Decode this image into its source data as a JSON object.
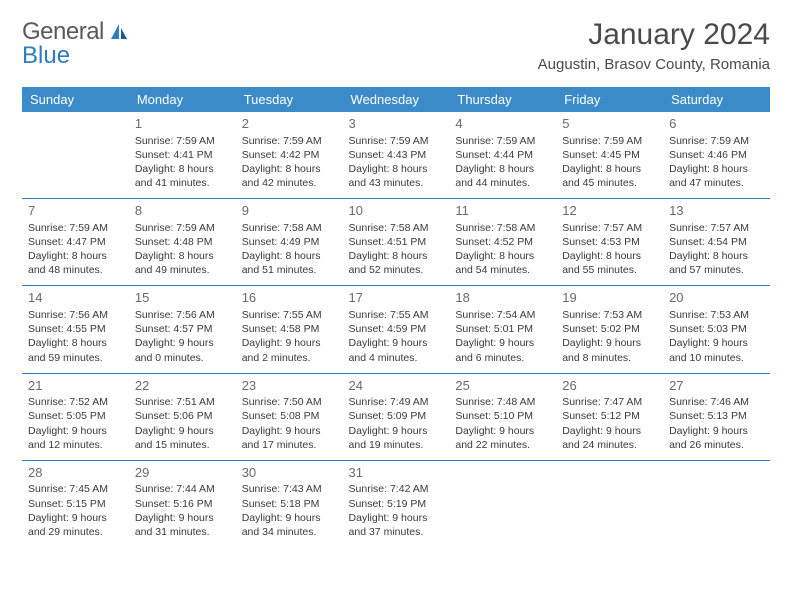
{
  "logo": {
    "part1": "General",
    "part2": "Blue"
  },
  "title": "January 2024",
  "location": "Augustin, Brasov County, Romania",
  "colors": {
    "header_bg": "#3b8bc9",
    "header_fg": "#ffffff",
    "accent": "#2f7bbf",
    "text": "#3a3a3a",
    "title_color": "#4a4a4a"
  },
  "day_names": [
    "Sunday",
    "Monday",
    "Tuesday",
    "Wednesday",
    "Thursday",
    "Friday",
    "Saturday"
  ],
  "weeks": [
    [
      null,
      {
        "n": "1",
        "sr": "Sunrise: 7:59 AM",
        "ss": "Sunset: 4:41 PM",
        "d1": "Daylight: 8 hours",
        "d2": "and 41 minutes."
      },
      {
        "n": "2",
        "sr": "Sunrise: 7:59 AM",
        "ss": "Sunset: 4:42 PM",
        "d1": "Daylight: 8 hours",
        "d2": "and 42 minutes."
      },
      {
        "n": "3",
        "sr": "Sunrise: 7:59 AM",
        "ss": "Sunset: 4:43 PM",
        "d1": "Daylight: 8 hours",
        "d2": "and 43 minutes."
      },
      {
        "n": "4",
        "sr": "Sunrise: 7:59 AM",
        "ss": "Sunset: 4:44 PM",
        "d1": "Daylight: 8 hours",
        "d2": "and 44 minutes."
      },
      {
        "n": "5",
        "sr": "Sunrise: 7:59 AM",
        "ss": "Sunset: 4:45 PM",
        "d1": "Daylight: 8 hours",
        "d2": "and 45 minutes."
      },
      {
        "n": "6",
        "sr": "Sunrise: 7:59 AM",
        "ss": "Sunset: 4:46 PM",
        "d1": "Daylight: 8 hours",
        "d2": "and 47 minutes."
      }
    ],
    [
      {
        "n": "7",
        "sr": "Sunrise: 7:59 AM",
        "ss": "Sunset: 4:47 PM",
        "d1": "Daylight: 8 hours",
        "d2": "and 48 minutes."
      },
      {
        "n": "8",
        "sr": "Sunrise: 7:59 AM",
        "ss": "Sunset: 4:48 PM",
        "d1": "Daylight: 8 hours",
        "d2": "and 49 minutes."
      },
      {
        "n": "9",
        "sr": "Sunrise: 7:58 AM",
        "ss": "Sunset: 4:49 PM",
        "d1": "Daylight: 8 hours",
        "d2": "and 51 minutes."
      },
      {
        "n": "10",
        "sr": "Sunrise: 7:58 AM",
        "ss": "Sunset: 4:51 PM",
        "d1": "Daylight: 8 hours",
        "d2": "and 52 minutes."
      },
      {
        "n": "11",
        "sr": "Sunrise: 7:58 AM",
        "ss": "Sunset: 4:52 PM",
        "d1": "Daylight: 8 hours",
        "d2": "and 54 minutes."
      },
      {
        "n": "12",
        "sr": "Sunrise: 7:57 AM",
        "ss": "Sunset: 4:53 PM",
        "d1": "Daylight: 8 hours",
        "d2": "and 55 minutes."
      },
      {
        "n": "13",
        "sr": "Sunrise: 7:57 AM",
        "ss": "Sunset: 4:54 PM",
        "d1": "Daylight: 8 hours",
        "d2": "and 57 minutes."
      }
    ],
    [
      {
        "n": "14",
        "sr": "Sunrise: 7:56 AM",
        "ss": "Sunset: 4:55 PM",
        "d1": "Daylight: 8 hours",
        "d2": "and 59 minutes."
      },
      {
        "n": "15",
        "sr": "Sunrise: 7:56 AM",
        "ss": "Sunset: 4:57 PM",
        "d1": "Daylight: 9 hours",
        "d2": "and 0 minutes."
      },
      {
        "n": "16",
        "sr": "Sunrise: 7:55 AM",
        "ss": "Sunset: 4:58 PM",
        "d1": "Daylight: 9 hours",
        "d2": "and 2 minutes."
      },
      {
        "n": "17",
        "sr": "Sunrise: 7:55 AM",
        "ss": "Sunset: 4:59 PM",
        "d1": "Daylight: 9 hours",
        "d2": "and 4 minutes."
      },
      {
        "n": "18",
        "sr": "Sunrise: 7:54 AM",
        "ss": "Sunset: 5:01 PM",
        "d1": "Daylight: 9 hours",
        "d2": "and 6 minutes."
      },
      {
        "n": "19",
        "sr": "Sunrise: 7:53 AM",
        "ss": "Sunset: 5:02 PM",
        "d1": "Daylight: 9 hours",
        "d2": "and 8 minutes."
      },
      {
        "n": "20",
        "sr": "Sunrise: 7:53 AM",
        "ss": "Sunset: 5:03 PM",
        "d1": "Daylight: 9 hours",
        "d2": "and 10 minutes."
      }
    ],
    [
      {
        "n": "21",
        "sr": "Sunrise: 7:52 AM",
        "ss": "Sunset: 5:05 PM",
        "d1": "Daylight: 9 hours",
        "d2": "and 12 minutes."
      },
      {
        "n": "22",
        "sr": "Sunrise: 7:51 AM",
        "ss": "Sunset: 5:06 PM",
        "d1": "Daylight: 9 hours",
        "d2": "and 15 minutes."
      },
      {
        "n": "23",
        "sr": "Sunrise: 7:50 AM",
        "ss": "Sunset: 5:08 PM",
        "d1": "Daylight: 9 hours",
        "d2": "and 17 minutes."
      },
      {
        "n": "24",
        "sr": "Sunrise: 7:49 AM",
        "ss": "Sunset: 5:09 PM",
        "d1": "Daylight: 9 hours",
        "d2": "and 19 minutes."
      },
      {
        "n": "25",
        "sr": "Sunrise: 7:48 AM",
        "ss": "Sunset: 5:10 PM",
        "d1": "Daylight: 9 hours",
        "d2": "and 22 minutes."
      },
      {
        "n": "26",
        "sr": "Sunrise: 7:47 AM",
        "ss": "Sunset: 5:12 PM",
        "d1": "Daylight: 9 hours",
        "d2": "and 24 minutes."
      },
      {
        "n": "27",
        "sr": "Sunrise: 7:46 AM",
        "ss": "Sunset: 5:13 PM",
        "d1": "Daylight: 9 hours",
        "d2": "and 26 minutes."
      }
    ],
    [
      {
        "n": "28",
        "sr": "Sunrise: 7:45 AM",
        "ss": "Sunset: 5:15 PM",
        "d1": "Daylight: 9 hours",
        "d2": "and 29 minutes."
      },
      {
        "n": "29",
        "sr": "Sunrise: 7:44 AM",
        "ss": "Sunset: 5:16 PM",
        "d1": "Daylight: 9 hours",
        "d2": "and 31 minutes."
      },
      {
        "n": "30",
        "sr": "Sunrise: 7:43 AM",
        "ss": "Sunset: 5:18 PM",
        "d1": "Daylight: 9 hours",
        "d2": "and 34 minutes."
      },
      {
        "n": "31",
        "sr": "Sunrise: 7:42 AM",
        "ss": "Sunset: 5:19 PM",
        "d1": "Daylight: 9 hours",
        "d2": "and 37 minutes."
      },
      null,
      null,
      null
    ]
  ]
}
